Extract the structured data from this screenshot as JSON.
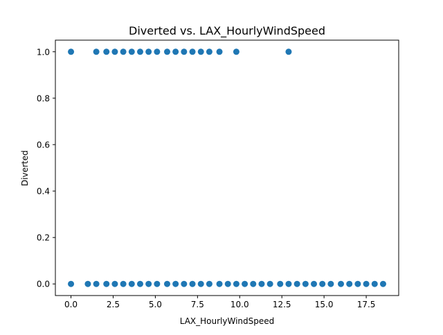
{
  "chart_data": {
    "type": "scatter",
    "title": "Diverted vs. LAX_HourlyWindSpeed",
    "xlabel": "LAX_HourlyWindSpeed",
    "ylabel": "Diverted",
    "xlim": [
      -0.925,
      19.425
    ],
    "ylim": [
      -0.05,
      1.05
    ],
    "xticks": [
      0.0,
      2.5,
      5.0,
      7.5,
      10.0,
      12.5,
      15.0,
      17.5
    ],
    "xtick_labels": [
      "0.0",
      "2.5",
      "5.0",
      "7.5",
      "10.0",
      "12.5",
      "15.0",
      "17.5"
    ],
    "yticks": [
      0.0,
      0.2,
      0.4,
      0.6,
      0.8,
      1.0
    ],
    "ytick_labels": [
      "0.0",
      "0.2",
      "0.4",
      "0.6",
      "0.8",
      "1.0"
    ],
    "grid": false,
    "marker_color": "#1f77b4",
    "series": [
      {
        "points": [
          [
            0,
            1
          ],
          [
            1.5,
            1
          ],
          [
            2.1,
            1
          ],
          [
            2.6,
            1
          ],
          [
            3.1,
            1
          ],
          [
            3.6,
            1
          ],
          [
            4.1,
            1
          ],
          [
            4.6,
            1
          ],
          [
            5.1,
            1
          ],
          [
            5.7,
            1
          ],
          [
            6.2,
            1
          ],
          [
            6.7,
            1
          ],
          [
            7.2,
            1
          ],
          [
            7.7,
            1
          ],
          [
            8.2,
            1
          ],
          [
            8.8,
            1
          ],
          [
            9.8,
            1
          ],
          [
            12.9,
            1
          ],
          [
            0,
            0
          ],
          [
            1.0,
            0
          ],
          [
            1.5,
            0
          ],
          [
            2.1,
            0
          ],
          [
            2.6,
            0
          ],
          [
            3.1,
            0
          ],
          [
            3.6,
            0
          ],
          [
            4.1,
            0
          ],
          [
            4.6,
            0
          ],
          [
            5.1,
            0
          ],
          [
            5.7,
            0
          ],
          [
            6.2,
            0
          ],
          [
            6.7,
            0
          ],
          [
            7.2,
            0
          ],
          [
            7.7,
            0
          ],
          [
            8.2,
            0
          ],
          [
            8.8,
            0
          ],
          [
            9.3,
            0
          ],
          [
            9.8,
            0
          ],
          [
            10.3,
            0
          ],
          [
            10.8,
            0
          ],
          [
            11.3,
            0
          ],
          [
            11.8,
            0
          ],
          [
            12.4,
            0
          ],
          [
            12.9,
            0
          ],
          [
            13.4,
            0
          ],
          [
            13.9,
            0
          ],
          [
            14.4,
            0
          ],
          [
            14.9,
            0
          ],
          [
            15.4,
            0
          ],
          [
            16.0,
            0
          ],
          [
            16.5,
            0
          ],
          [
            17.0,
            0
          ],
          [
            17.5,
            0
          ],
          [
            18.0,
            0
          ],
          [
            18.5,
            0
          ]
        ]
      }
    ]
  }
}
